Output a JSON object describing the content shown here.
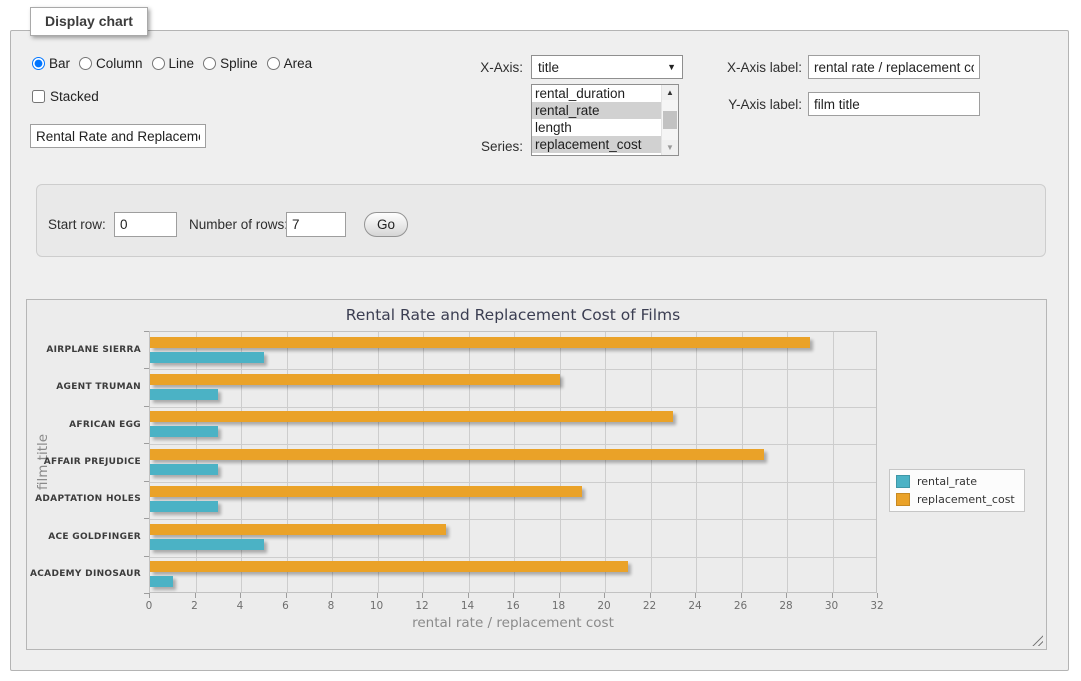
{
  "form": {
    "legend": "Display chart",
    "chart_types": {
      "options": [
        "Bar",
        "Column",
        "Line",
        "Spline",
        "Area"
      ],
      "selected": "Bar"
    },
    "stacked": {
      "label": "Stacked",
      "checked": false
    },
    "title_input": {
      "value": "Rental Rate and Replacement Cost of Films"
    },
    "x_axis": {
      "label": "X-Axis:",
      "selected": "title"
    },
    "series_select": {
      "label": "Series:",
      "options": [
        {
          "label": "rental_duration",
          "selected": false
        },
        {
          "label": "rental_rate",
          "selected": true
        },
        {
          "label": "length",
          "selected": false
        },
        {
          "label": "replacement_cost",
          "selected": true
        }
      ]
    },
    "x_axis_label": {
      "label": "X-Axis label:",
      "value": "rental rate / replacement cost"
    },
    "y_axis_label": {
      "label": "Y-Axis label:",
      "value": "film title"
    }
  },
  "row_controls": {
    "start_row": {
      "label": "Start row:",
      "value": "0"
    },
    "num_rows": {
      "label": "Number of rows:",
      "value": "7"
    },
    "go_label": "Go"
  },
  "chart_data": {
    "type": "bar",
    "orientation": "horizontal",
    "title": "Rental Rate and Replacement Cost of Films",
    "xlabel": "rental rate / replacement cost",
    "ylabel": "film title",
    "categories": [
      "AIRPLANE SIERRA",
      "AGENT TRUMAN",
      "AFRICAN EGG",
      "AFFAIR PREJUDICE",
      "ADAPTATION HOLES",
      "ACE GOLDFINGER",
      "ACADEMY DINOSAUR"
    ],
    "series": [
      {
        "name": "rental_rate",
        "color": "#4bb2c5",
        "values": [
          5,
          3,
          3,
          3,
          3,
          5,
          1
        ]
      },
      {
        "name": "replacement_cost",
        "color": "#eaa228",
        "values": [
          29,
          18,
          23,
          27,
          19,
          13,
          21
        ]
      }
    ],
    "xlim": [
      0,
      32
    ],
    "x_ticks": [
      0,
      2,
      4,
      6,
      8,
      10,
      12,
      14,
      16,
      18,
      20,
      22,
      24,
      26,
      28,
      30,
      32
    ],
    "grid": true,
    "legend_position": "right"
  },
  "colors": {
    "teal_series": "#4bb2c5",
    "orange_series": "#eaa228",
    "panel_bg": "#efefef",
    "chart_bg": "#ececec",
    "grid_line": "#cdcdcd"
  }
}
